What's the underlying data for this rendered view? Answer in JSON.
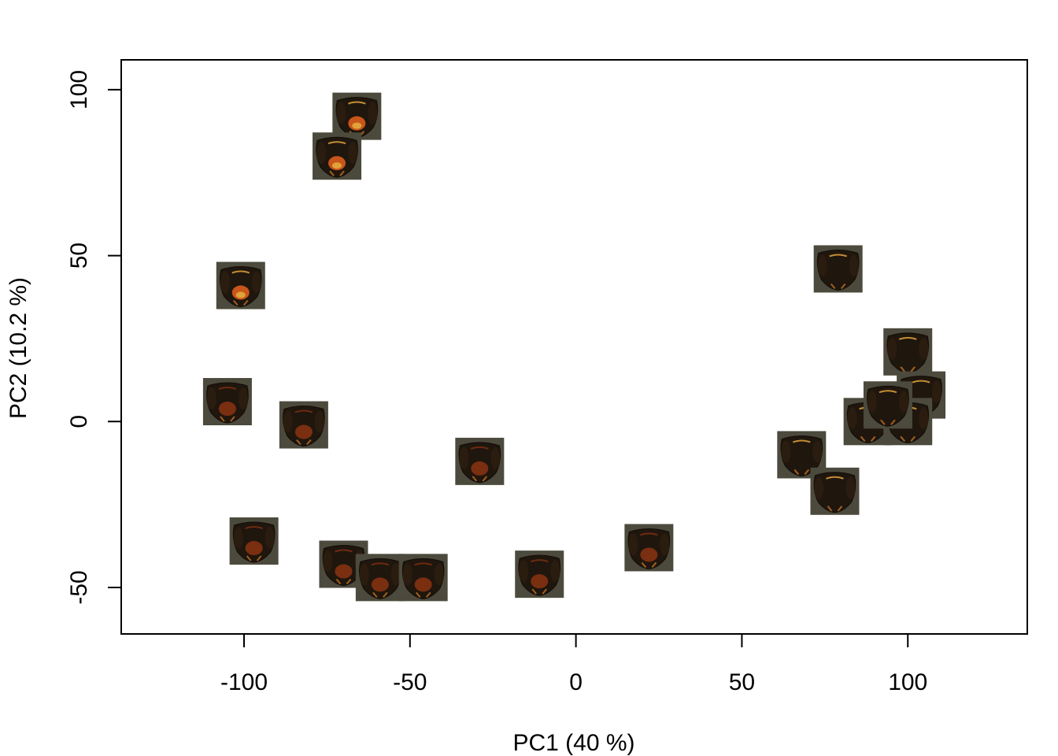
{
  "chart_data": {
    "type": "scatter",
    "title": "",
    "xlabel": "PC1 (40 %)",
    "ylabel": "PC2 (10.2 %)",
    "xlim": [
      -137,
      136
    ],
    "ylim": [
      -64,
      109
    ],
    "xticks": [
      -100,
      -50,
      0,
      50,
      100
    ],
    "xtick_labels": [
      "-100",
      "-50",
      "0",
      "50",
      "100"
    ],
    "yticks": [
      -50,
      0,
      50,
      100
    ],
    "ytick_labels": [
      "-50",
      "0",
      "50",
      "100"
    ],
    "marker": "wasp-head-image",
    "grid": false,
    "legend": "none",
    "colors": {
      "frame": "#000000",
      "marker_background": "#4b4a3c",
      "head_dark": "#1f160e",
      "head_red": "#7a2f10",
      "head_orange": "#c8551a",
      "head_yellow": "#e0a23a"
    },
    "series": [
      {
        "points": [
          {
            "x": -66,
            "y": 92,
            "style": "orange"
          },
          {
            "x": -72,
            "y": 80,
            "style": "orange"
          },
          {
            "x": -101,
            "y": 41,
            "style": "orange"
          },
          {
            "x": -105,
            "y": 6,
            "style": "red"
          },
          {
            "x": -82,
            "y": -1,
            "style": "red"
          },
          {
            "x": -29,
            "y": -12,
            "style": "red"
          },
          {
            "x": -97,
            "y": -36,
            "style": "red"
          },
          {
            "x": -70,
            "y": -43,
            "style": "red"
          },
          {
            "x": -59,
            "y": -47,
            "style": "red"
          },
          {
            "x": -46,
            "y": -47,
            "style": "red"
          },
          {
            "x": -11,
            "y": -46,
            "style": "red"
          },
          {
            "x": 22,
            "y": -38,
            "style": "red"
          },
          {
            "x": 79,
            "y": 46,
            "style": "dark"
          },
          {
            "x": 100,
            "y": 21,
            "style": "dark"
          },
          {
            "x": 104,
            "y": 8,
            "style": "dark"
          },
          {
            "x": 88,
            "y": 0,
            "style": "dark"
          },
          {
            "x": 100,
            "y": 0,
            "style": "dark"
          },
          {
            "x": 94,
            "y": 5,
            "style": "dark"
          },
          {
            "x": 68,
            "y": -10,
            "style": "dark"
          },
          {
            "x": 78,
            "y": -21,
            "style": "dark"
          }
        ]
      }
    ]
  }
}
